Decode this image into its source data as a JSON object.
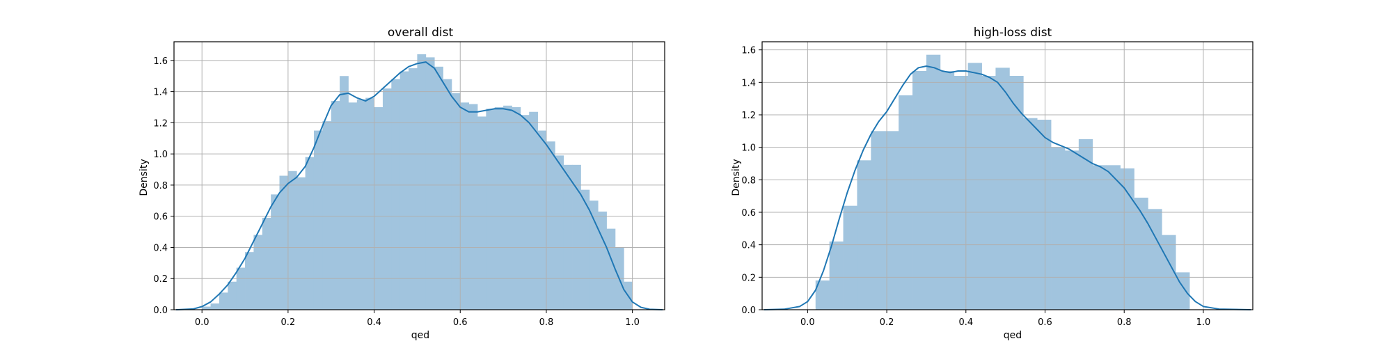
{
  "colors": {
    "hist_fill": "#a1c4de",
    "kde_line": "#1f77b4",
    "grid": "#b0b0b0",
    "axes": "#000000",
    "background": "#ffffff"
  },
  "chart_data": [
    {
      "type": "bar",
      "title": "overall dist",
      "xlabel": "qed",
      "ylabel": "Density",
      "xlim": [
        -0.065,
        1.075
      ],
      "ylim": [
        0,
        1.72
      ],
      "grid": true,
      "xticks": [
        "0.0",
        "0.2",
        "0.4",
        "0.6",
        "0.8",
        "1.0"
      ],
      "yticks": [
        "0.0",
        "0.2",
        "0.4",
        "0.6",
        "0.8",
        "1.0",
        "1.2",
        "1.4",
        "1.6"
      ],
      "bin_width": 0.02,
      "bins": [
        [
          0.0,
          0.02
        ],
        [
          0.02,
          0.04
        ],
        [
          0.04,
          0.11
        ],
        [
          0.06,
          0.18
        ],
        [
          0.08,
          0.27
        ],
        [
          0.1,
          0.37
        ],
        [
          0.12,
          0.48
        ],
        [
          0.14,
          0.59
        ],
        [
          0.16,
          0.74
        ],
        [
          0.18,
          0.86
        ],
        [
          0.2,
          0.89
        ],
        [
          0.22,
          0.85
        ],
        [
          0.24,
          0.98
        ],
        [
          0.26,
          1.15
        ],
        [
          0.28,
          1.21
        ],
        [
          0.3,
          1.34
        ],
        [
          0.32,
          1.5
        ],
        [
          0.34,
          1.33
        ],
        [
          0.36,
          1.35
        ],
        [
          0.38,
          1.36
        ],
        [
          0.4,
          1.3
        ],
        [
          0.42,
          1.42
        ],
        [
          0.44,
          1.48
        ],
        [
          0.46,
          1.53
        ],
        [
          0.48,
          1.55
        ],
        [
          0.5,
          1.64
        ],
        [
          0.52,
          1.62
        ],
        [
          0.54,
          1.56
        ],
        [
          0.56,
          1.48
        ],
        [
          0.58,
          1.39
        ],
        [
          0.6,
          1.33
        ],
        [
          0.62,
          1.32
        ],
        [
          0.64,
          1.24
        ],
        [
          0.66,
          1.29
        ],
        [
          0.68,
          1.3
        ],
        [
          0.7,
          1.31
        ],
        [
          0.72,
          1.3
        ],
        [
          0.74,
          1.25
        ],
        [
          0.76,
          1.27
        ],
        [
          0.78,
          1.15
        ],
        [
          0.8,
          1.08
        ],
        [
          0.82,
          0.99
        ],
        [
          0.84,
          0.93
        ],
        [
          0.86,
          0.93
        ],
        [
          0.88,
          0.77
        ],
        [
          0.9,
          0.7
        ],
        [
          0.92,
          0.63
        ],
        [
          0.94,
          0.52
        ],
        [
          0.96,
          0.4
        ],
        [
          0.98,
          0.18
        ]
      ],
      "kde": [
        [
          -0.06,
          0.0
        ],
        [
          -0.02,
          0.005
        ],
        [
          0.0,
          0.02
        ],
        [
          0.02,
          0.05
        ],
        [
          0.04,
          0.1
        ],
        [
          0.06,
          0.16
        ],
        [
          0.08,
          0.24
        ],
        [
          0.1,
          0.33
        ],
        [
          0.12,
          0.44
        ],
        [
          0.14,
          0.55
        ],
        [
          0.16,
          0.66
        ],
        [
          0.18,
          0.75
        ],
        [
          0.2,
          0.81
        ],
        [
          0.22,
          0.85
        ],
        [
          0.24,
          0.92
        ],
        [
          0.26,
          1.04
        ],
        [
          0.28,
          1.18
        ],
        [
          0.3,
          1.31
        ],
        [
          0.32,
          1.38
        ],
        [
          0.34,
          1.39
        ],
        [
          0.36,
          1.36
        ],
        [
          0.38,
          1.34
        ],
        [
          0.4,
          1.37
        ],
        [
          0.42,
          1.42
        ],
        [
          0.44,
          1.47
        ],
        [
          0.46,
          1.52
        ],
        [
          0.48,
          1.56
        ],
        [
          0.5,
          1.58
        ],
        [
          0.52,
          1.59
        ],
        [
          0.54,
          1.55
        ],
        [
          0.56,
          1.46
        ],
        [
          0.58,
          1.37
        ],
        [
          0.6,
          1.3
        ],
        [
          0.62,
          1.27
        ],
        [
          0.64,
          1.27
        ],
        [
          0.66,
          1.28
        ],
        [
          0.68,
          1.29
        ],
        [
          0.7,
          1.29
        ],
        [
          0.72,
          1.28
        ],
        [
          0.74,
          1.25
        ],
        [
          0.76,
          1.2
        ],
        [
          0.78,
          1.13
        ],
        [
          0.8,
          1.06
        ],
        [
          0.82,
          0.98
        ],
        [
          0.84,
          0.9
        ],
        [
          0.86,
          0.82
        ],
        [
          0.88,
          0.74
        ],
        [
          0.9,
          0.64
        ],
        [
          0.92,
          0.52
        ],
        [
          0.94,
          0.4
        ],
        [
          0.96,
          0.26
        ],
        [
          0.98,
          0.13
        ],
        [
          1.0,
          0.05
        ],
        [
          1.02,
          0.015
        ],
        [
          1.04,
          0.003
        ],
        [
          1.07,
          0.0
        ]
      ]
    },
    {
      "type": "bar",
      "title": "high-loss dist",
      "xlabel": "qed",
      "ylabel": "Density",
      "xlim": [
        -0.115,
        1.125
      ],
      "ylim": [
        0,
        1.65
      ],
      "grid": true,
      "xticks": [
        "0.0",
        "0.2",
        "0.4",
        "0.6",
        "0.8",
        "1.0"
      ],
      "yticks": [
        "0.0",
        "0.2",
        "0.4",
        "0.6",
        "0.8",
        "1.0",
        "1.2",
        "1.4",
        "1.6"
      ],
      "bin_width": 0.035,
      "bins": [
        [
          0.02,
          0.18
        ],
        [
          0.055,
          0.42
        ],
        [
          0.09,
          0.64
        ],
        [
          0.125,
          0.92
        ],
        [
          0.16,
          1.1
        ],
        [
          0.195,
          1.1
        ],
        [
          0.23,
          1.32
        ],
        [
          0.265,
          1.47
        ],
        [
          0.3,
          1.57
        ],
        [
          0.335,
          1.47
        ],
        [
          0.37,
          1.44
        ],
        [
          0.405,
          1.52
        ],
        [
          0.44,
          1.44
        ],
        [
          0.475,
          1.49
        ],
        [
          0.51,
          1.44
        ],
        [
          0.545,
          1.18
        ],
        [
          0.58,
          1.17
        ],
        [
          0.615,
          1.0
        ],
        [
          0.65,
          0.98
        ],
        [
          0.685,
          1.05
        ],
        [
          0.72,
          0.89
        ],
        [
          0.755,
          0.89
        ],
        [
          0.79,
          0.87
        ],
        [
          0.825,
          0.69
        ],
        [
          0.86,
          0.62
        ],
        [
          0.895,
          0.46
        ],
        [
          0.93,
          0.23
        ]
      ],
      "kde": [
        [
          -0.11,
          0.0
        ],
        [
          -0.06,
          0.003
        ],
        [
          -0.02,
          0.02
        ],
        [
          0.0,
          0.05
        ],
        [
          0.02,
          0.12
        ],
        [
          0.04,
          0.24
        ],
        [
          0.06,
          0.39
        ],
        [
          0.08,
          0.56
        ],
        [
          0.1,
          0.72
        ],
        [
          0.12,
          0.86
        ],
        [
          0.14,
          0.98
        ],
        [
          0.16,
          1.08
        ],
        [
          0.18,
          1.16
        ],
        [
          0.2,
          1.22
        ],
        [
          0.22,
          1.3
        ],
        [
          0.24,
          1.38
        ],
        [
          0.26,
          1.45
        ],
        [
          0.28,
          1.49
        ],
        [
          0.3,
          1.5
        ],
        [
          0.32,
          1.49
        ],
        [
          0.34,
          1.47
        ],
        [
          0.36,
          1.46
        ],
        [
          0.38,
          1.47
        ],
        [
          0.4,
          1.47
        ],
        [
          0.42,
          1.46
        ],
        [
          0.44,
          1.45
        ],
        [
          0.46,
          1.43
        ],
        [
          0.48,
          1.4
        ],
        [
          0.5,
          1.34
        ],
        [
          0.52,
          1.27
        ],
        [
          0.54,
          1.21
        ],
        [
          0.56,
          1.16
        ],
        [
          0.58,
          1.11
        ],
        [
          0.6,
          1.06
        ],
        [
          0.62,
          1.03
        ],
        [
          0.64,
          1.01
        ],
        [
          0.66,
          0.99
        ],
        [
          0.68,
          0.96
        ],
        [
          0.7,
          0.93
        ],
        [
          0.72,
          0.9
        ],
        [
          0.74,
          0.88
        ],
        [
          0.76,
          0.85
        ],
        [
          0.78,
          0.8
        ],
        [
          0.8,
          0.75
        ],
        [
          0.82,
          0.68
        ],
        [
          0.84,
          0.61
        ],
        [
          0.86,
          0.53
        ],
        [
          0.88,
          0.44
        ],
        [
          0.9,
          0.35
        ],
        [
          0.92,
          0.26
        ],
        [
          0.94,
          0.17
        ],
        [
          0.96,
          0.1
        ],
        [
          0.98,
          0.05
        ],
        [
          1.0,
          0.02
        ],
        [
          1.04,
          0.004
        ],
        [
          1.12,
          0.0
        ]
      ]
    }
  ]
}
